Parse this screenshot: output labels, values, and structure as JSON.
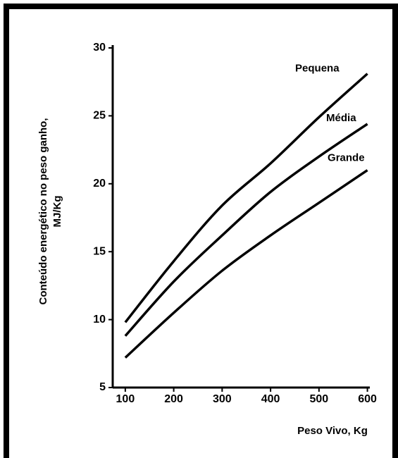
{
  "chart_data": {
    "type": "line",
    "ylabel": [
      "Conteúdo energético no peso ganho,",
      "MJ/Kg"
    ],
    "xlabel": "Peso Vivo, Kg",
    "x": [
      100,
      200,
      300,
      400,
      500,
      600
    ],
    "series": [
      {
        "name": "Pequena",
        "color": "#000000",
        "values": [
          9.8,
          14.3,
          18.4,
          21.5,
          24.9,
          28.1
        ]
      },
      {
        "name": "Média",
        "color": "#000000",
        "values": [
          8.8,
          12.8,
          16.2,
          19.4,
          22.0,
          24.4
        ]
      },
      {
        "name": "Grande",
        "color": "#000000",
        "values": [
          7.2,
          10.5,
          13.6,
          16.2,
          18.6,
          21.0
        ]
      }
    ],
    "xlim": [
      74,
      605
    ],
    "xticks": [
      100,
      200,
      300,
      400,
      500,
      600
    ],
    "ylim": [
      5,
      30
    ],
    "yticks": [
      5,
      10,
      15,
      20,
      25,
      30
    ],
    "grid": false
  }
}
